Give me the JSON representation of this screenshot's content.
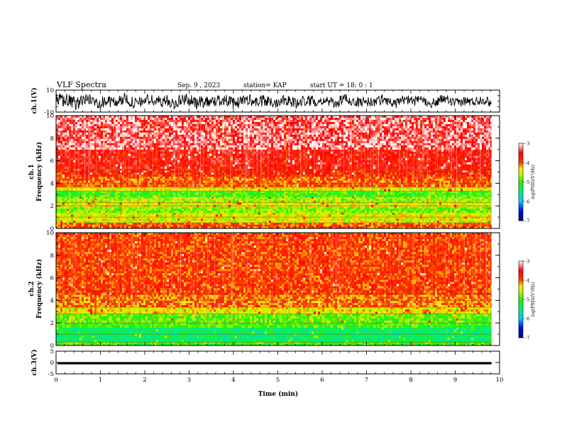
{
  "header": {
    "title": "VLF Spectra",
    "date": "Sep. 9 , 2023",
    "station": "station= KAP",
    "start": "start UT =  18: 0 : 1"
  },
  "chart_data": [
    {
      "type": "line",
      "name": "waveform-ch1",
      "ylabel": "ch.1(V)",
      "ylim": [
        -10,
        10
      ],
      "yticks": [
        "10",
        "-10"
      ],
      "xlim": [
        0,
        10
      ],
      "x_end": 9.82,
      "y_profile": [
        {
          "x": 0.0,
          "min": -8.5,
          "max": 8.5
        },
        {
          "x": 1.0,
          "min": -7.5,
          "max": 7.0
        },
        {
          "x": 2.0,
          "min": -7.0,
          "max": 7.0
        },
        {
          "x": 3.0,
          "min": -8.0,
          "max": 7.5
        },
        {
          "x": 4.0,
          "min": -7.0,
          "max": 7.0
        },
        {
          "x": 5.0,
          "min": -7.5,
          "max": 7.0
        },
        {
          "x": 6.0,
          "min": -6.5,
          "max": 6.5
        },
        {
          "x": 7.0,
          "min": -6.5,
          "max": 6.0
        },
        {
          "x": 8.0,
          "min": -6.0,
          "max": 6.0
        },
        {
          "x": 9.0,
          "min": -6.0,
          "max": 5.5
        },
        {
          "x": 9.82,
          "min": -6.0,
          "max": 5.5
        }
      ]
    },
    {
      "type": "heatmap",
      "name": "spectrogram-ch1",
      "ylabel": "ch.1\nFrequency (kHz)",
      "ylim": [
        0,
        10
      ],
      "yticks": [
        "0",
        "2",
        "4",
        "6",
        "8",
        "10"
      ],
      "xlim": [
        0,
        10
      ],
      "x_end": 9.82,
      "band_levels": [
        {
          "f0": 0.0,
          "f1": 0.5,
          "level": -4.0
        },
        {
          "f0": 0.5,
          "f1": 1.4,
          "level": -4.5
        },
        {
          "f0": 1.4,
          "f1": 1.9,
          "level": -4.8
        },
        {
          "f0": 1.9,
          "f1": 2.3,
          "level": -4.5
        },
        {
          "f0": 2.3,
          "f1": 2.8,
          "level": -4.7
        },
        {
          "f0": 2.8,
          "f1": 3.3,
          "level": -5.0
        },
        {
          "f0": 3.3,
          "f1": 3.7,
          "level": -4.5
        },
        {
          "f0": 3.7,
          "f1": 4.6,
          "level": -4.0
        },
        {
          "f0": 4.6,
          "f1": 5.3,
          "level": -3.8
        },
        {
          "f0": 5.3,
          "f1": 7.0,
          "level": -3.6
        },
        {
          "f0": 7.0,
          "f1": 10.0,
          "level": -3.3
        }
      ],
      "lines_khz": [
        0.5,
        1.0,
        2.0,
        2.3,
        3.3,
        3.65,
        4.0,
        5.0,
        5.2
      ]
    },
    {
      "type": "heatmap",
      "name": "spectrogram-ch2",
      "ylabel": "ch.2\nFrequency (kHz)",
      "ylim": [
        0,
        10
      ],
      "yticks": [
        "0",
        "2",
        "4",
        "6",
        "8",
        "10"
      ],
      "xlim": [
        0,
        10
      ],
      "x_end": 9.82,
      "band_levels": [
        {
          "f0": 0.0,
          "f1": 0.3,
          "level": -5.0
        },
        {
          "f0": 0.3,
          "f1": 1.6,
          "level": -5.4
        },
        {
          "f0": 1.6,
          "f1": 2.0,
          "level": -5.0
        },
        {
          "f0": 2.0,
          "f1": 2.8,
          "level": -4.9
        },
        {
          "f0": 2.8,
          "f1": 3.4,
          "level": -4.4
        },
        {
          "f0": 3.4,
          "f1": 4.5,
          "level": -4.1
        },
        {
          "f0": 4.5,
          "f1": 10.0,
          "level": -3.9
        }
      ],
      "lines_khz": [
        0.3,
        1.0,
        2.0,
        2.8,
        3.4,
        4.0,
        4.6,
        4.9,
        6.2,
        7.4
      ]
    },
    {
      "type": "line",
      "name": "waveform-ch3",
      "ylabel": "ch.3(V)",
      "ylim": [
        -5,
        5
      ],
      "yticks": [
        "5",
        "0",
        "-5"
      ],
      "xlim": [
        0,
        10
      ],
      "x_end": 9.82,
      "band": {
        "min": -0.8,
        "max": 0.2
      }
    }
  ],
  "x_axis": {
    "label": "Time (min)",
    "ticks": [
      "0",
      "1",
      "2",
      "3",
      "4",
      "5",
      "6",
      "7",
      "8",
      "9",
      "10"
    ]
  },
  "colorbar": {
    "label": "log(PSD)(V²/Hz)",
    "range": [
      -7,
      -3
    ],
    "ticks": [
      "-3",
      "-4",
      "-5",
      "-6",
      "-7"
    ]
  }
}
